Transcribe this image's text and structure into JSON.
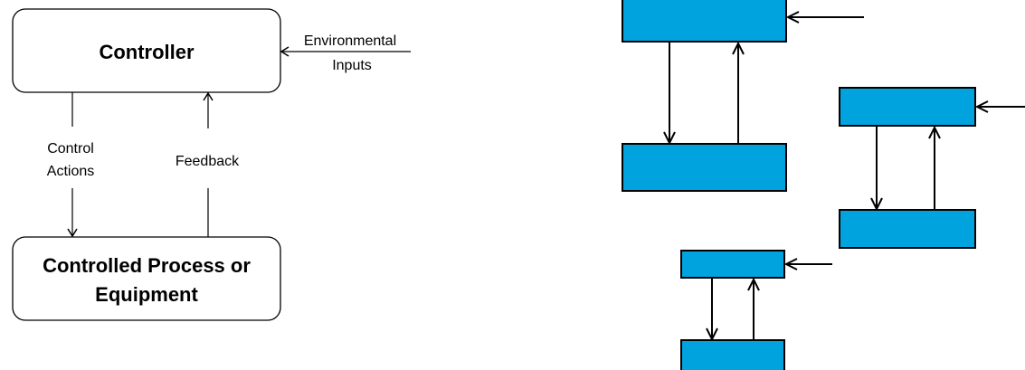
{
  "left_diagram": {
    "controller_label": "Controller",
    "process_label_line1": "Controlled Process or",
    "process_label_line2": "Equipment",
    "control_actions_line1": "Control",
    "control_actions_line2": "Actions",
    "feedback_label": "Feedback",
    "environmental_line1": "Environmental",
    "environmental_line2": "Inputs"
  },
  "colors": {
    "box_fill": "#00a3dd",
    "stroke": "#000000",
    "controller_box_fill": "#ffffff"
  }
}
